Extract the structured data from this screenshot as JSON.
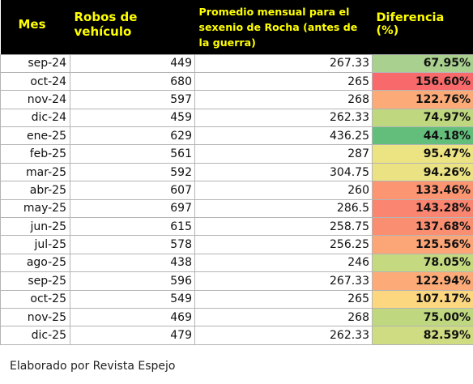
{
  "chart_data": {
    "type": "table",
    "columns": [
      "Mes",
      "Robos de vehículo",
      "Promedio mensual para el sexenio de Rocha (antes de la guerra)",
      "Diferencia (%)"
    ],
    "rows": [
      {
        "mes": "sep-24",
        "robos": "449",
        "promedio": "267.33",
        "diferencia": "67.95%",
        "color": "#a9d08e"
      },
      {
        "mes": "oct-24",
        "robos": "680",
        "promedio": "265",
        "diferencia": "156.60%",
        "color": "#f8696b"
      },
      {
        "mes": "nov-24",
        "robos": "597",
        "promedio": "268",
        "diferencia": "122.76%",
        "color": "#fcab78"
      },
      {
        "mes": "dic-24",
        "robos": "459",
        "promedio": "262.33",
        "diferencia": "74.97%",
        "color": "#bfd880"
      },
      {
        "mes": "ene-25",
        "robos": "629",
        "promedio": "436.25",
        "diferencia": "44.18%",
        "color": "#63be7b"
      },
      {
        "mes": "feb-25",
        "robos": "561",
        "promedio": "287",
        "diferencia": "95.47%",
        "color": "#ece382"
      },
      {
        "mes": "mar-25",
        "robos": "592",
        "promedio": "304.75",
        "diferencia": "94.26%",
        "color": "#eae283"
      },
      {
        "mes": "abr-25",
        "robos": "607",
        "promedio": "260",
        "diferencia": "133.46%",
        "color": "#fb9572"
      },
      {
        "mes": "may-25",
        "robos": "697",
        "promedio": "286.5",
        "diferencia": "143.28%",
        "color": "#fa8570"
      },
      {
        "mes": "jun-25",
        "robos": "615",
        "promedio": "258.75",
        "diferencia": "137.68%",
        "color": "#fa8e71"
      },
      {
        "mes": "jul-25",
        "robos": "578",
        "promedio": "256.25",
        "diferencia": "125.56%",
        "color": "#fca577"
      },
      {
        "mes": "ago-25",
        "robos": "438",
        "promedio": "246",
        "diferencia": "78.05%",
        "color": "#c5d980"
      },
      {
        "mes": "sep-25",
        "robos": "596",
        "promedio": "267.33",
        "diferencia": "122.94%",
        "color": "#fcab78"
      },
      {
        "mes": "oct-25",
        "robos": "549",
        "promedio": "265",
        "diferencia": "107.17%",
        "color": "#fdd680"
      },
      {
        "mes": "nov-25",
        "robos": "469",
        "promedio": "268",
        "diferencia": "75.00%",
        "color": "#bfd880"
      },
      {
        "mes": "dic-25",
        "robos": "479",
        "promedio": "262.33",
        "diferencia": "82.59%",
        "color": "#cfdc81"
      }
    ],
    "header_bg": "#000000",
    "header_color": "#ffff00"
  },
  "footnote": "Elaborado por Revista Espejo"
}
